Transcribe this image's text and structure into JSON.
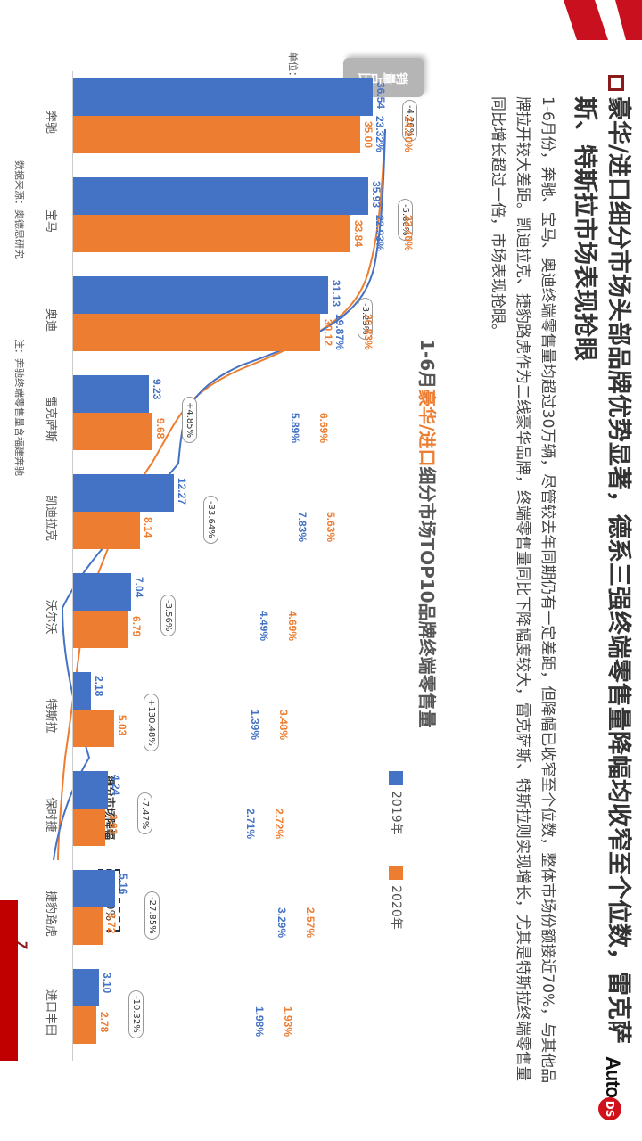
{
  "header": {
    "title": "豪华/进口细分市场头部品牌优势显著，德系三强终端零售量降幅均收窄至个位数，雷克萨斯、特斯拉市场表现抢眼",
    "logo_text": "Auto",
    "logo_badge": "DS"
  },
  "body_text": "1-6月份，奔驰、宝马、奥迪终端零售量均超过30万辆，尽管较去年同期仍有一定差距，但降幅已收窄至个位数，整体市场份额接近70%，与其他品牌拉开较大差距。凯迪拉克、捷豹路虎作为二线豪华品牌，终端零售量同比下降幅度较大，雷克萨斯、特斯拉则实现增长，尤其是特斯拉终端零售量同比增长超过一倍，市场表现抢眼。",
  "chart_title": {
    "prefix": "1-6月",
    "highlight": "豪华/进口",
    "suffix": "细分市场TOP10品牌终端零售量"
  },
  "legend": {
    "s2019": "2019年",
    "s2020": "2020年"
  },
  "share_tag": "销量占比",
  "unit_label": "单位：万辆",
  "segment_decline": {
    "label": "细分市场降幅",
    "value": "-7.69%"
  },
  "footer": {
    "source": "数据来源：奥德思研究",
    "note": "注：奔驰终端零售量含福建奔驰"
  },
  "page_number": "7",
  "colors": {
    "s2019": "#4472c4",
    "s2020": "#ed7d31",
    "accent_red": "#c8101e"
  },
  "bars": [
    {
      "brand": "奔驰",
      "v2019": "36.54",
      "v2020": "35.00",
      "change": "-4.20%",
      "share2019": "23.32%",
      "share2020": "24.20%"
    },
    {
      "brand": "宝马",
      "v2019": "35.93",
      "v2020": "33.84",
      "change": "-5.80%",
      "share2019": "22.93%",
      "share2020": "23.40%"
    },
    {
      "brand": "奥迪",
      "v2019": "31.13",
      "v2020": "30.12",
      "change": "-3.23%",
      "share2019": "19.87%",
      "share2020": "20.83%"
    },
    {
      "brand": "雷克萨斯",
      "v2019": "9.23",
      "v2020": "9.68",
      "change": "+4.85%",
      "share2019": "5.89%",
      "share2020": "6.69%"
    },
    {
      "brand": "凯迪拉克",
      "v2019": "12.27",
      "v2020": "8.14",
      "change": "-33.64%",
      "share2019": "7.83%",
      "share2020": "5.63%"
    },
    {
      "brand": "沃尔沃",
      "v2019": "7.04",
      "v2020": "6.79",
      "change": "-3.56%",
      "share2019": "4.49%",
      "share2020": "4.69%"
    },
    {
      "brand": "特斯拉",
      "v2019": "2.18",
      "v2020": "5.03",
      "change": "+130.48%",
      "share2019": "1.39%",
      "share2020": "3.48%"
    },
    {
      "brand": "保时捷",
      "v2019": "4.24",
      "v2020": "3.93",
      "change": "-7.47%",
      "share2019": "2.71%",
      "share2020": "2.72%"
    },
    {
      "brand": "捷豹路虎",
      "v2019": "5.16",
      "v2020": "3.72",
      "change": "-27.85%",
      "share2019": "3.29%",
      "share2020": "2.57%"
    },
    {
      "brand": "进口丰田",
      "v2019": "3.10",
      "v2020": "2.78",
      "change": "-10.32%",
      "share2019": "1.98%",
      "share2020": "1.93%"
    }
  ],
  "chart_data": {
    "type": "bar",
    "title": "1-6月豪华/进口细分市场TOP10品牌终端零售量",
    "xlabel": "",
    "ylabel": "单位：万辆",
    "categories": [
      "奔驰",
      "宝马",
      "奥迪",
      "雷克萨斯",
      "凯迪拉克",
      "沃尔沃",
      "特斯拉",
      "保时捷",
      "捷豹路虎",
      "进口丰田"
    ],
    "series": [
      {
        "name": "2019年",
        "values": [
          36.54,
          35.93,
          31.13,
          9.23,
          12.27,
          7.04,
          2.18,
          4.24,
          5.16,
          3.1
        ]
      },
      {
        "name": "2020年",
        "values": [
          35.0,
          33.84,
          30.12,
          9.68,
          8.14,
          6.79,
          5.03,
          3.93,
          3.72,
          2.78
        ]
      }
    ],
    "yoy_change_pct": [
      -4.2,
      -5.8,
      -3.23,
      4.85,
      -33.64,
      -3.56,
      130.48,
      -7.47,
      -27.85,
      -10.32
    ],
    "share_line": {
      "type": "line",
      "label": "销量占比",
      "series": [
        {
          "name": "2019年",
          "values": [
            23.32,
            22.93,
            19.87,
            5.89,
            7.83,
            4.49,
            1.39,
            2.71,
            3.29,
            1.98
          ]
        },
        {
          "name": "2020年",
          "values": [
            24.2,
            23.4,
            20.83,
            6.69,
            5.63,
            4.69,
            3.48,
            2.72,
            2.57,
            1.93
          ]
        }
      ]
    },
    "annotations": [
      "细分市场降幅 -7.69%"
    ],
    "legend_position": "top-right",
    "grid": false,
    "ylim": [
      0,
      40
    ]
  }
}
